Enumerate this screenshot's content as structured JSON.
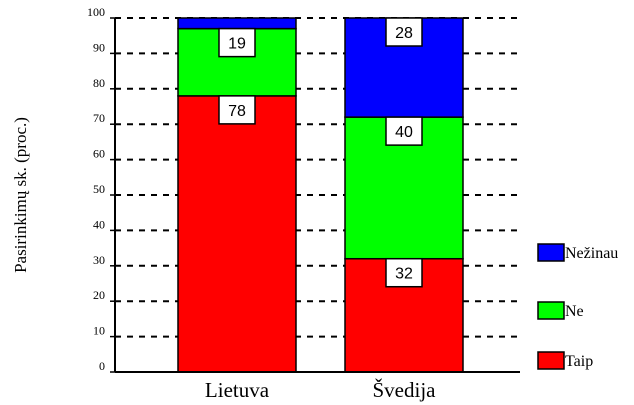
{
  "chart_data": {
    "type": "bar",
    "stacked": true,
    "categories": [
      "Lietuva",
      "Švedija"
    ],
    "series": [
      {
        "name": "Taip",
        "values": [
          78,
          32
        ],
        "color": "#ff0000"
      },
      {
        "name": "Ne",
        "values": [
          19,
          40
        ],
        "color": "#00ff00"
      },
      {
        "name": "Nežinau",
        "values": [
          3,
          28
        ],
        "color": "#0000ff"
      }
    ],
    "data_labels": [
      {
        "category": "Lietuva",
        "series": "Taip",
        "text": "78"
      },
      {
        "category": "Lietuva",
        "series": "Ne",
        "text": "19"
      },
      {
        "category": "Švedija",
        "series": "Taip",
        "text": "32"
      },
      {
        "category": "Švedija",
        "series": "Ne",
        "text": "40"
      },
      {
        "category": "Švedija",
        "series": "Nežinau",
        "text": "28"
      }
    ],
    "ylabel": "Pasirinkimų sk. (proc.)",
    "xlabel": "",
    "ylim": [
      0,
      100
    ],
    "yticks": [
      "0",
      "10",
      "20",
      "30",
      "40",
      "50",
      "60",
      "70",
      "80",
      "90",
      "100"
    ],
    "grid": "dashed horizontal",
    "legend_position": "right",
    "legend_order": [
      "Nežinau",
      "Ne",
      "Taip"
    ]
  }
}
